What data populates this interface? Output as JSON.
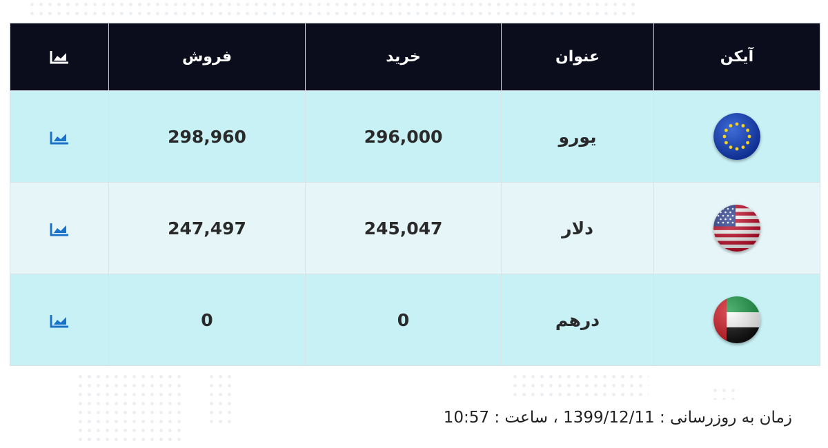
{
  "table": {
    "headers": {
      "icon": "آیکن",
      "title": "عنوان",
      "buy": "خرید",
      "sell": "فروش",
      "chart_icon": "chart-line-icon"
    },
    "rows": [
      {
        "flag_icon": "eu-flag-icon",
        "name": "یورو",
        "buy": "296,000",
        "sell": "298,960",
        "chart_icon": "chart-line-icon"
      },
      {
        "flag_icon": "us-flag-icon",
        "name": "دلار",
        "buy": "245,047",
        "sell": "247,497",
        "chart_icon": "chart-line-icon"
      },
      {
        "flag_icon": "uae-flag-icon",
        "name": "درهم",
        "buy": "0",
        "sell": "0",
        "chart_icon": "chart-line-icon"
      }
    ]
  },
  "footer": {
    "label": "زمان به روزرسانی :",
    "date": "1399/12/11",
    "time_label": "، ساعت :",
    "time": "10:57"
  },
  "colors": {
    "header_bg": "#0b0c1c",
    "row_odd": "#c8f1f6",
    "row_even": "#e6f5f8",
    "chart_icon_blue": "#1a73c8"
  }
}
